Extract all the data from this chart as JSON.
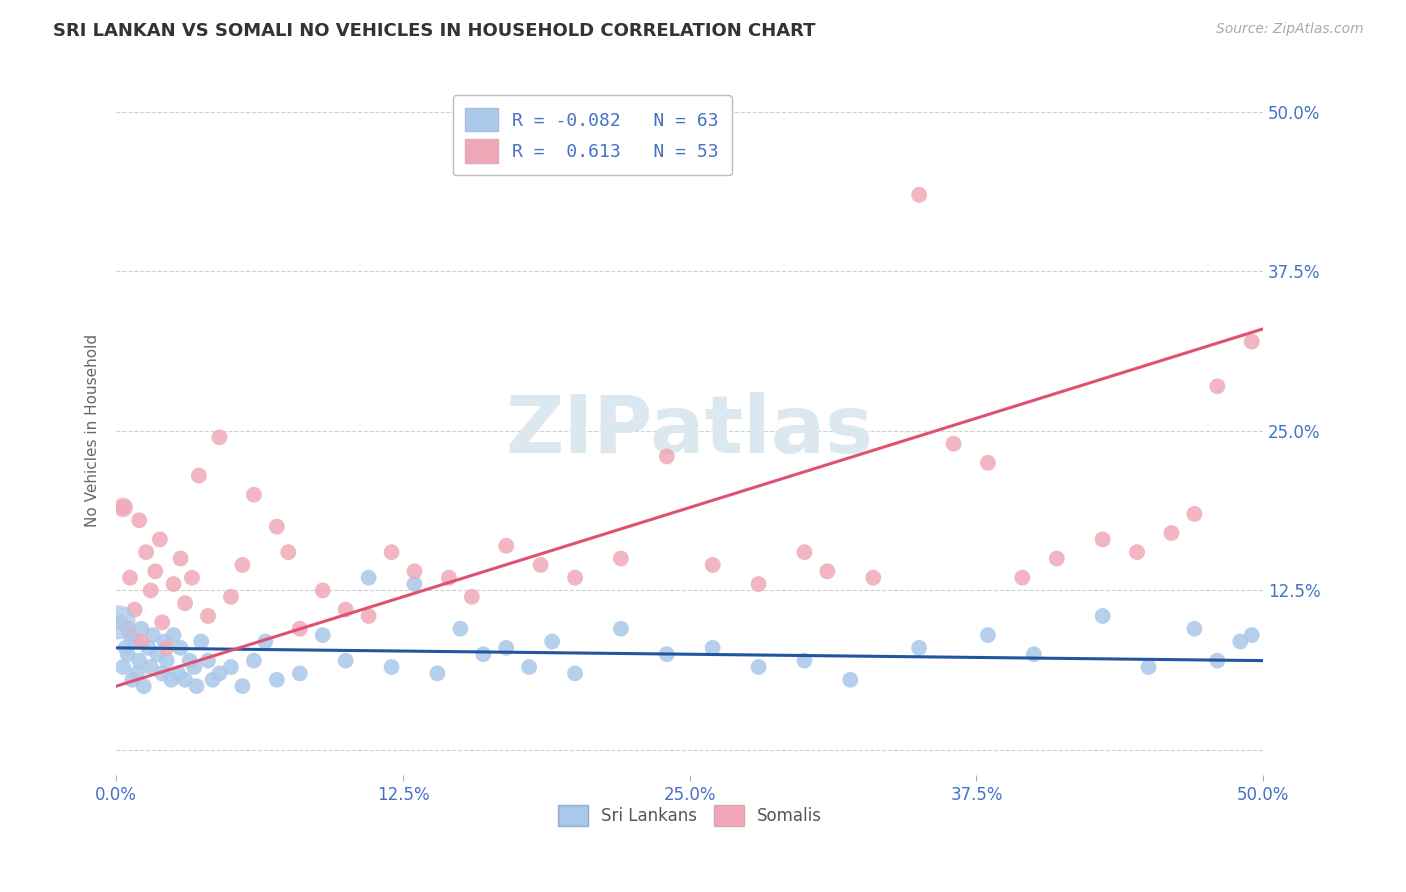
{
  "title": "SRI LANKAN VS SOMALI NO VEHICLES IN HOUSEHOLD CORRELATION CHART",
  "source": "Source: ZipAtlas.com",
  "ylabel": "No Vehicles in Household",
  "xlim": [
    0.0,
    50.0
  ],
  "ylim": [
    -2.0,
    52.0
  ],
  "yticks": [
    0.0,
    12.5,
    25.0,
    37.5,
    50.0
  ],
  "ytick_labels": [
    "",
    "12.5%",
    "25.0%",
    "37.5%",
    "50.0%"
  ],
  "xtick_vals": [
    0.0,
    12.5,
    25.0,
    37.5,
    50.0
  ],
  "xtick_labels": [
    "0.0%",
    "12.5%",
    "25.0%",
    "37.5%",
    "50.0%"
  ],
  "sri_lankan_R": -0.082,
  "sri_lankan_N": 63,
  "somali_R": 0.613,
  "somali_N": 53,
  "sri_lankan_color": "#aac8e8",
  "somali_color": "#f0a8b8",
  "sri_lankan_line_color": "#2255a0",
  "somali_line_color": "#e05070",
  "background_color": "#ffffff",
  "grid_color": "#cccccc",
  "title_color": "#333333",
  "axis_label_color": "#4472c4",
  "watermark_color": "#dce8f0",
  "sri_lankans_label": "Sri Lankans",
  "somalis_label": "Somalis",
  "sri_lankan_x": [
    0.2,
    0.3,
    0.4,
    0.5,
    0.6,
    0.7,
    0.8,
    0.9,
    1.0,
    1.1,
    1.2,
    1.4,
    1.5,
    1.6,
    1.8,
    2.0,
    2.1,
    2.2,
    2.4,
    2.5,
    2.7,
    2.8,
    3.0,
    3.2,
    3.4,
    3.5,
    3.7,
    4.0,
    4.2,
    4.5,
    5.0,
    5.5,
    6.0,
    6.5,
    7.0,
    8.0,
    9.0,
    10.0,
    11.0,
    12.0,
    13.0,
    14.0,
    15.0,
    16.0,
    17.0,
    18.0,
    19.0,
    20.0,
    22.0,
    24.0,
    26.0,
    28.0,
    30.0,
    32.0,
    35.0,
    38.0,
    40.0,
    43.0,
    45.0,
    47.0,
    48.0,
    49.0,
    49.5
  ],
  "sri_lankan_y": [
    10.0,
    6.5,
    8.0,
    7.5,
    9.0,
    5.5,
    8.5,
    6.0,
    7.0,
    9.5,
    5.0,
    8.0,
    6.5,
    9.0,
    7.5,
    6.0,
    8.5,
    7.0,
    5.5,
    9.0,
    6.0,
    8.0,
    5.5,
    7.0,
    6.5,
    5.0,
    8.5,
    7.0,
    5.5,
    6.0,
    6.5,
    5.0,
    7.0,
    8.5,
    5.5,
    6.0,
    9.0,
    7.0,
    13.5,
    6.5,
    13.0,
    6.0,
    9.5,
    7.5,
    8.0,
    6.5,
    8.5,
    6.0,
    9.5,
    7.5,
    8.0,
    6.5,
    7.0,
    5.5,
    8.0,
    9.0,
    7.5,
    10.5,
    6.5,
    9.5,
    7.0,
    8.5,
    9.0
  ],
  "sri_lankan_large_x": [
    0.1
  ],
  "sri_lankan_large_y": [
    10.0
  ],
  "somali_x": [
    0.3,
    0.5,
    0.6,
    0.8,
    1.0,
    1.1,
    1.3,
    1.5,
    1.7,
    1.9,
    2.0,
    2.2,
    2.5,
    2.8,
    3.0,
    3.3,
    3.6,
    4.0,
    4.5,
    5.0,
    5.5,
    6.0,
    7.0,
    7.5,
    8.0,
    9.0,
    10.0,
    11.0,
    12.0,
    13.0,
    14.5,
    15.5,
    17.0,
    18.5,
    20.0,
    22.0,
    24.0,
    26.0,
    28.0,
    30.0,
    31.0,
    33.0,
    35.0,
    36.5,
    38.0,
    39.5,
    41.0,
    43.0,
    44.5,
    46.0,
    47.0,
    48.0,
    49.5
  ],
  "somali_y": [
    19.0,
    9.5,
    13.5,
    11.0,
    18.0,
    8.5,
    15.5,
    12.5,
    14.0,
    16.5,
    10.0,
    8.0,
    13.0,
    15.0,
    11.5,
    13.5,
    21.5,
    10.5,
    24.5,
    12.0,
    14.5,
    20.0,
    17.5,
    15.5,
    9.5,
    12.5,
    11.0,
    10.5,
    15.5,
    14.0,
    13.5,
    12.0,
    16.0,
    14.5,
    13.5,
    15.0,
    23.0,
    14.5,
    13.0,
    15.5,
    14.0,
    13.5,
    43.5,
    24.0,
    22.5,
    13.5,
    15.0,
    16.5,
    15.5,
    17.0,
    18.5,
    28.5,
    32.0
  ],
  "somali_large_x": [
    0.1
  ],
  "somali_large_y": [
    19.0
  ]
}
